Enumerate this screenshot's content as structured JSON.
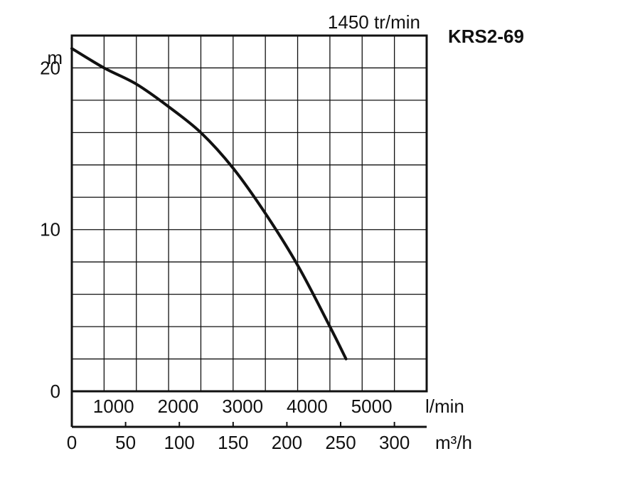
{
  "chart_data": {
    "type": "line",
    "title": "KRS2-69",
    "speed_label": "1450 tr/min",
    "ylabel": "m",
    "x_primary_unit": "l/min",
    "x_secondary_unit": "m³/h",
    "xlim": [
      0,
      5500
    ],
    "ylim": [
      0,
      22
    ],
    "y_ticks": [
      0,
      10,
      20
    ],
    "x_primary_ticks": [
      1000,
      2000,
      3000,
      4000,
      5000
    ],
    "x_secondary_ticks": [
      0,
      50,
      100,
      150,
      200,
      250,
      300
    ],
    "grid": true,
    "series": [
      {
        "x": [
          0,
          500,
          1000,
          1500,
          2000,
          2500,
          3000,
          3500,
          4000,
          4250
        ],
        "values": [
          21.2,
          20.0,
          19.0,
          17.6,
          16.0,
          13.8,
          11.0,
          7.8,
          4.0,
          2.0
        ]
      }
    ]
  }
}
